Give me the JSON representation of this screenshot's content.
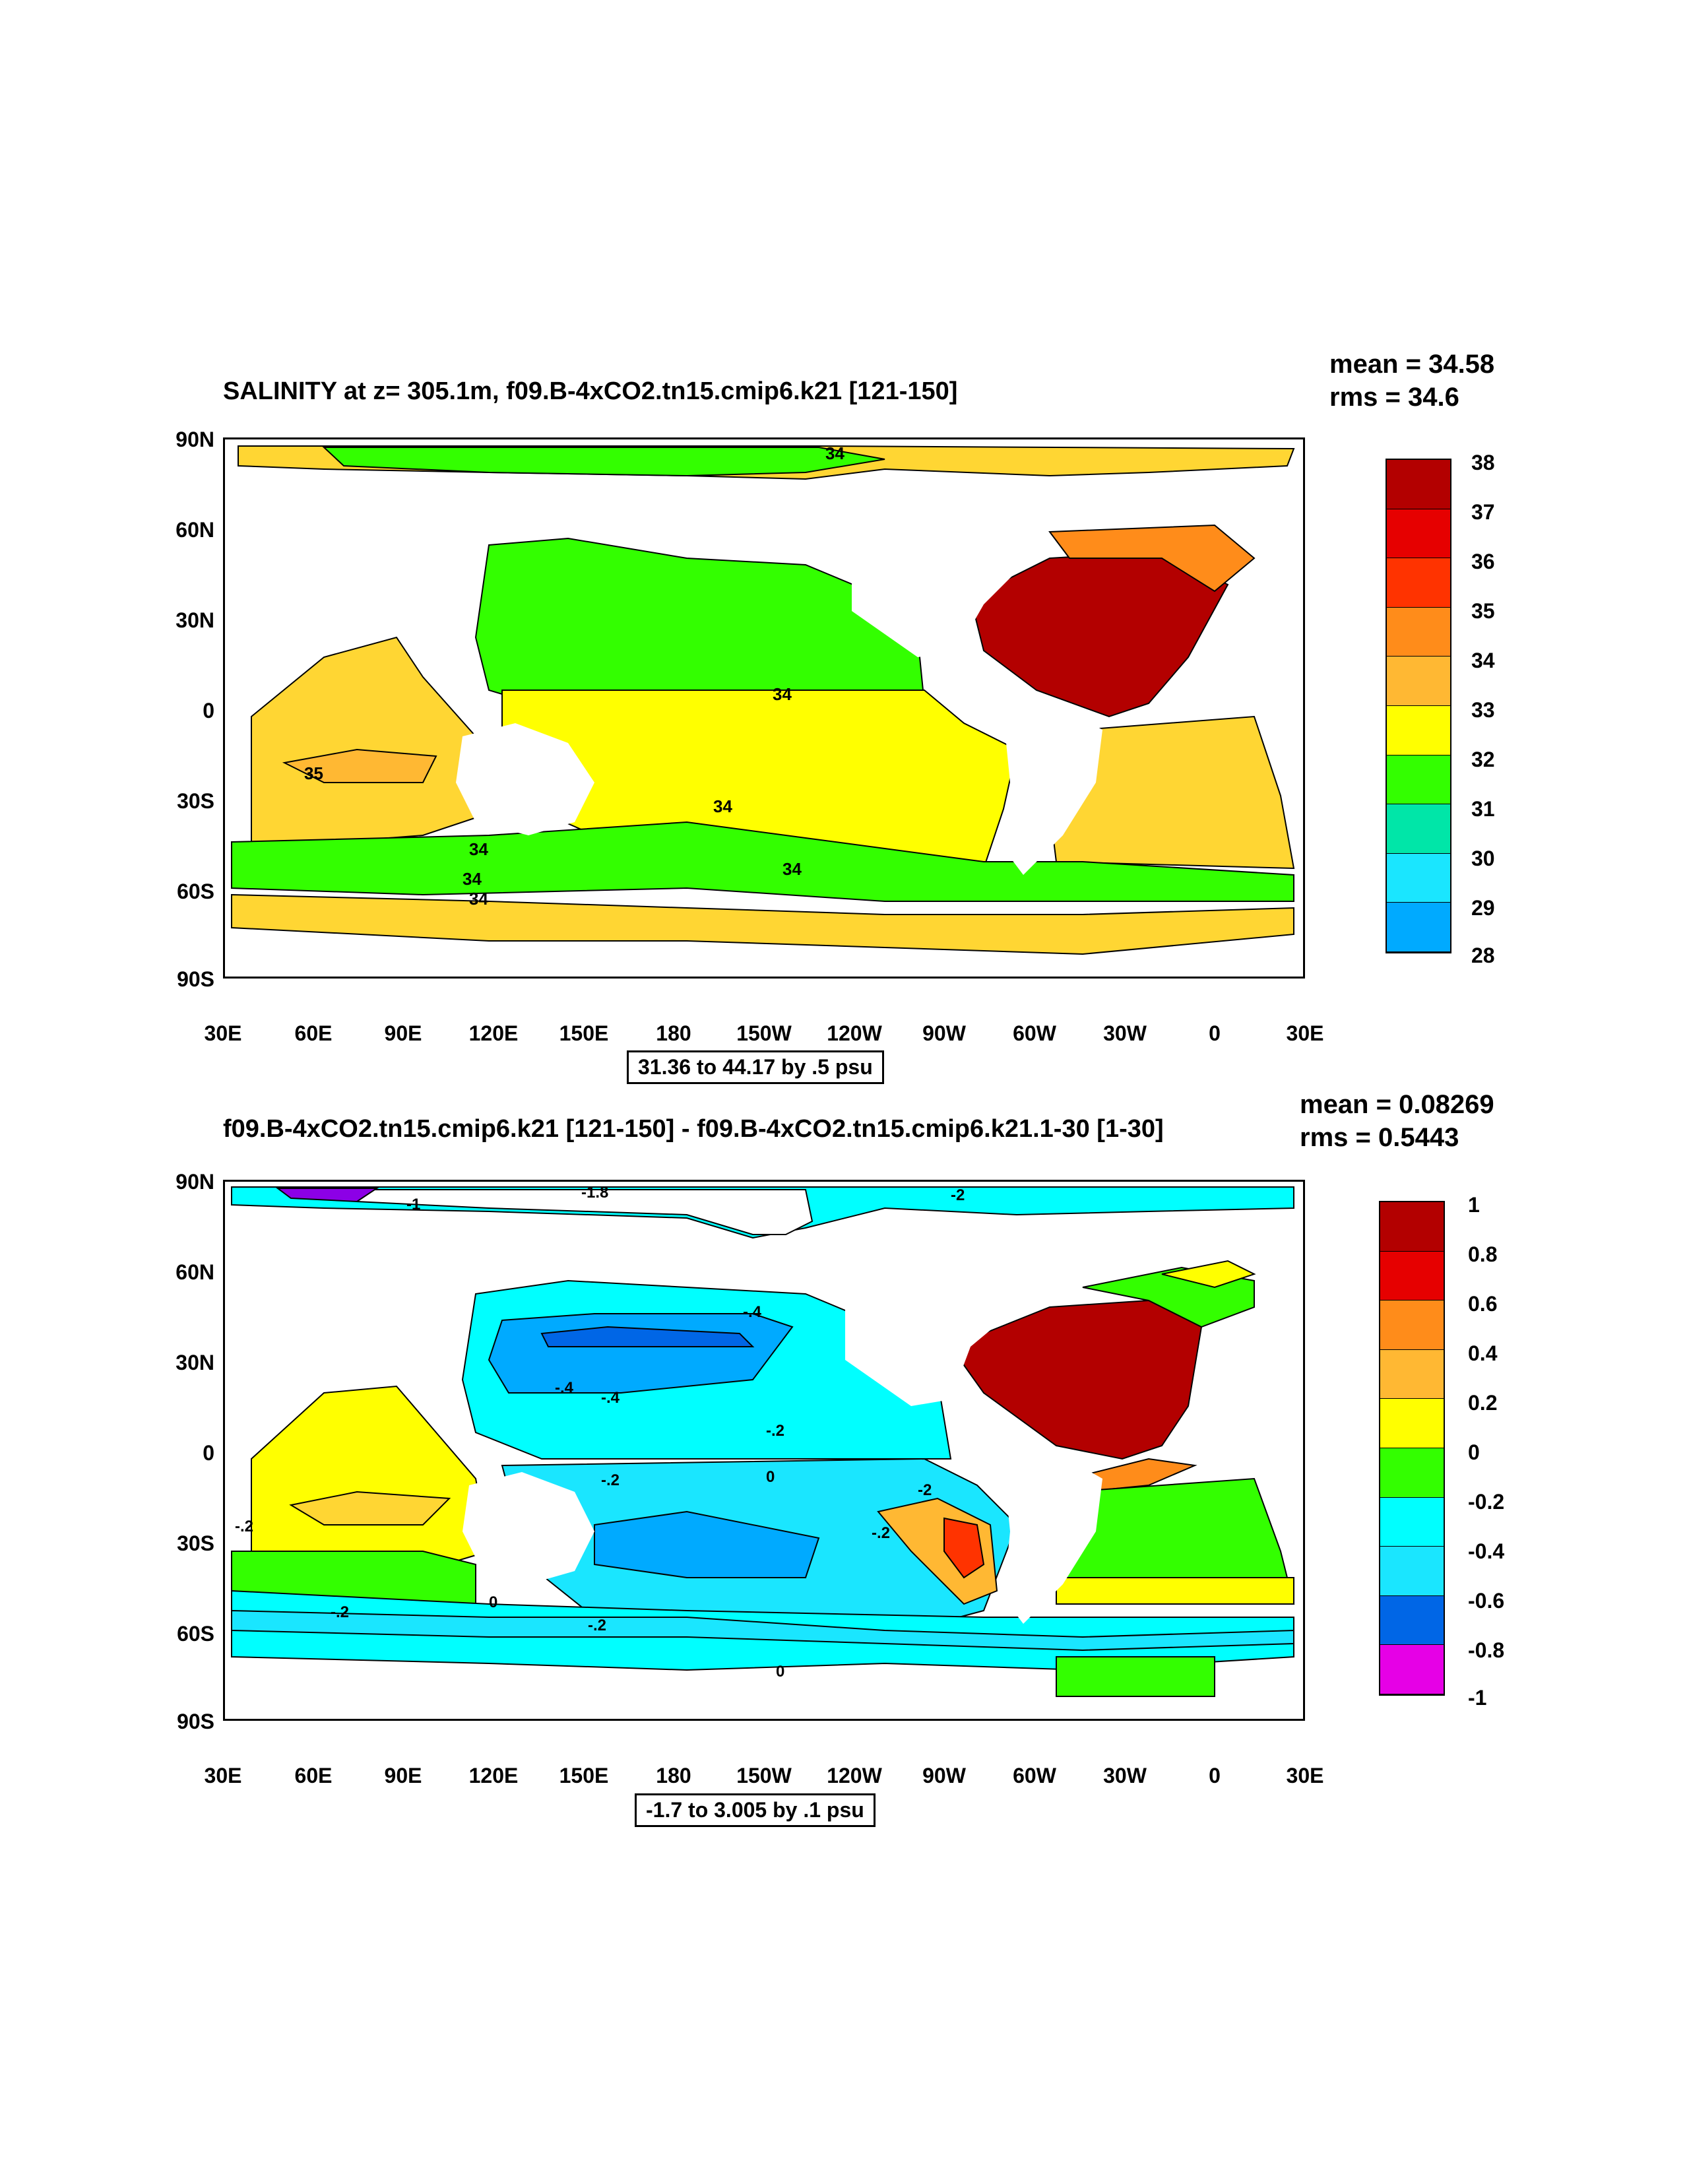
{
  "panels": [
    {
      "title": "SALINITY at z= 305.1m, f09.B-4xCO2.tn15.cmip6.k21 [121-150]",
      "mean": "mean = 34.58",
      "rms": "rms = 34.6",
      "contour_info": "31.36 to 44.17 by .5 psu",
      "colorbar_labels": [
        "38",
        "37",
        "36",
        "35",
        "34",
        "33",
        "32",
        "31",
        "30",
        "29",
        "28"
      ],
      "contour_labels": [
        "34",
        "34",
        "34",
        "35",
        "34",
        "34",
        "34",
        "34"
      ]
    },
    {
      "title": "f09.B-4xCO2.tn15.cmip6.k21 [121-150] - f09.B-4xCO2.tn15.cmip6.k21.1-30 [1-30]",
      "mean": "mean = 0.08269",
      "rms": "rms = 0.5443",
      "contour_info": "-1.7 to 3.005 by .1 psu",
      "colorbar_labels": [
        "1",
        "0.8",
        "0.6",
        "0.4",
        "0.2",
        "0",
        "-0.2",
        "-0.4",
        "-0.6",
        "-0.8",
        "-1"
      ],
      "contour_labels": [
        "-1.8",
        "-1",
        "-2",
        "-.4",
        "-.4",
        "-.4",
        "-.2",
        "-.2",
        "0",
        "-2",
        "-.2",
        "-.2",
        "0",
        "0",
        "-.2",
        "-.2"
      ]
    }
  ],
  "lat_labels": [
    "90N",
    "60N",
    "30N",
    "0",
    "30S",
    "60S",
    "90S"
  ],
  "lon_labels": [
    "30E",
    "60E",
    "90E",
    "120E",
    "150E",
    "180",
    "150W",
    "120W",
    "90W",
    "60W",
    "30W",
    "0",
    "30E"
  ],
  "colors": {
    "salinity": [
      "#b30000",
      "#e60000",
      "#ff3300",
      "#ff8c1a",
      "#ffb833",
      "#ffd633",
      "#ffff00",
      "#33ff00",
      "#00e6a8",
      "#1ae6ff",
      "#00aaff",
      "#0066e6",
      "#0000ff",
      "#8c00e6",
      "#e600e6",
      "#cccccc",
      "#777777"
    ],
    "diff": [
      "#b30000",
      "#e60000",
      "#ff3300",
      "#ff8c1a",
      "#ffb833",
      "#ffd633",
      "#ffff00",
      "#33ff00",
      "#00ffff",
      "#1ae6ff",
      "#00aaff",
      "#0066e6",
      "#0000ff",
      "#8c00e6",
      "#e600e6",
      "#cccccc",
      "#777777"
    ]
  }
}
